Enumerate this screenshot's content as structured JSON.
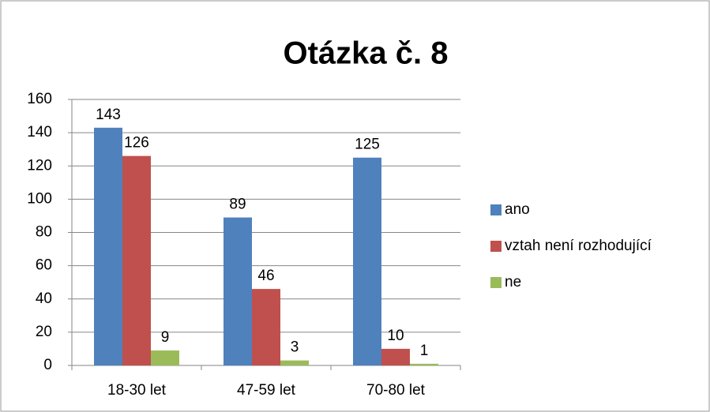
{
  "chart_data": {
    "type": "bar",
    "title": "Otázka č. 8",
    "categories": [
      "18-30 let",
      "47-59 let",
      "70-80 let"
    ],
    "series": [
      {
        "name": "ano",
        "color": "#4f81bd",
        "values": [
          143,
          89,
          125
        ]
      },
      {
        "name": "vztah není rozhodující",
        "color": "#c0504d",
        "values": [
          126,
          46,
          10
        ]
      },
      {
        "name": "ne",
        "color": "#9bbb59",
        "values": [
          9,
          3,
          1
        ]
      }
    ],
    "ylim": [
      0,
      160
    ],
    "yticks": [
      0,
      20,
      40,
      60,
      80,
      100,
      120,
      140,
      160
    ],
    "grid": true,
    "legend": "right"
  }
}
